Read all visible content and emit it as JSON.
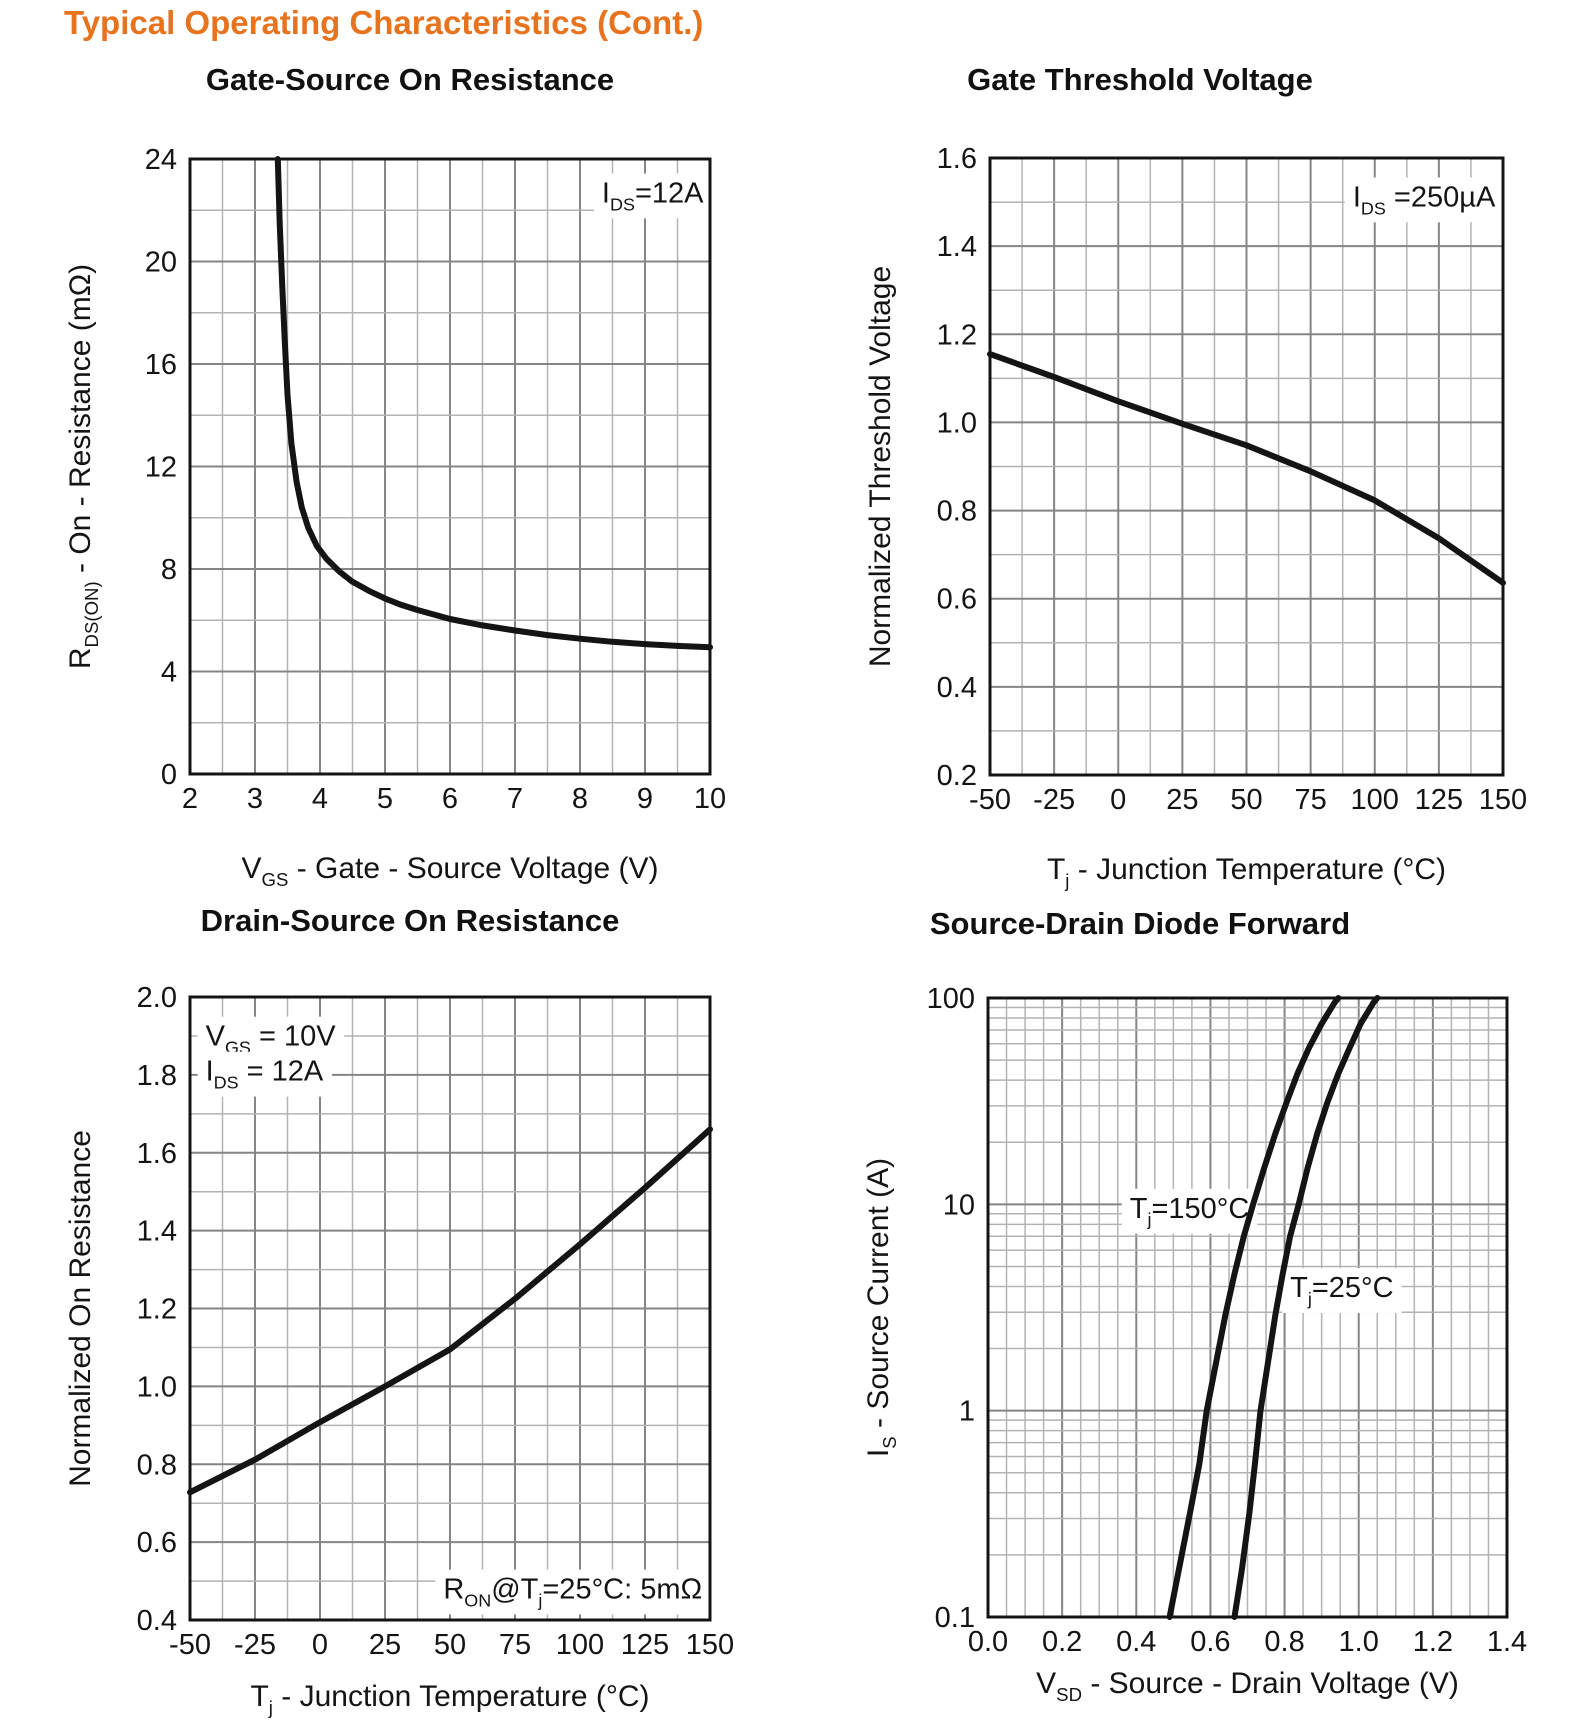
{
  "page": {
    "title": "Typical Operating Characteristics (Cont.)",
    "title_color": "#E8731E"
  },
  "chart_data": [
    {
      "type": "line",
      "title": "Gate-Source On Resistance",
      "xlabel_segments": [
        [
          "V",
          0
        ],
        [
          "GS",
          1
        ],
        [
          " - Gate - Source Voltage (V)",
          0
        ]
      ],
      "ylabel_segments": [
        [
          "R",
          0
        ],
        [
          "DS(ON)",
          1
        ],
        [
          " - On - Resistance (mΩ)",
          0
        ]
      ],
      "x": {
        "scale": "linear",
        "min": 2,
        "max": 10,
        "minor": 0.5,
        "tick_values": [
          2,
          3,
          4,
          5,
          6,
          7,
          8,
          9,
          10
        ],
        "tick_labels": [
          "2",
          "3",
          "4",
          "5",
          "6",
          "7",
          "8",
          "9",
          "10"
        ]
      },
      "y": {
        "scale": "linear",
        "min": 0,
        "max": 24,
        "grid": 2,
        "tick_values": [
          0,
          4,
          8,
          12,
          16,
          20,
          24
        ],
        "tick_labels": [
          "0",
          "4",
          "8",
          "12",
          "16",
          "20",
          "24"
        ]
      },
      "annotations": [
        {
          "segments": [
            [
              "I",
              0
            ],
            [
              "DS",
              1
            ],
            [
              "=12A",
              0
            ]
          ],
          "x": 9.9,
          "y": 22.3,
          "anchor": "end",
          "bg": true
        }
      ],
      "series": [
        {
          "name": "IDS=12A",
          "points": [
            [
              3.35,
              24
            ],
            [
              3.38,
              21.5
            ],
            [
              3.42,
              19
            ],
            [
              3.46,
              16.8
            ],
            [
              3.5,
              14.8
            ],
            [
              3.56,
              12.9
            ],
            [
              3.64,
              11.4
            ],
            [
              3.72,
              10.4
            ],
            [
              3.82,
              9.6
            ],
            [
              3.95,
              8.9
            ],
            [
              4.1,
              8.4
            ],
            [
              4.3,
              7.9
            ],
            [
              4.5,
              7.5
            ],
            [
              4.75,
              7.15
            ],
            [
              5,
              6.85
            ],
            [
              5.25,
              6.6
            ],
            [
              5.5,
              6.4
            ],
            [
              6,
              6.05
            ],
            [
              6.5,
              5.8
            ],
            [
              7,
              5.6
            ],
            [
              7.5,
              5.42
            ],
            [
              8,
              5.28
            ],
            [
              8.5,
              5.16
            ],
            [
              9,
              5.07
            ],
            [
              9.5,
              5.0
            ],
            [
              10,
              4.95
            ]
          ]
        }
      ]
    },
    {
      "type": "line",
      "title": "Gate Threshold Voltage",
      "xlabel_segments": [
        [
          "T",
          0
        ],
        [
          "j",
          1
        ],
        [
          " - Junction Temperature (°C)",
          0
        ]
      ],
      "ylabel_segments": [
        [
          "Normalized Threshold Voltage",
          0
        ]
      ],
      "x": {
        "scale": "linear",
        "min": -50,
        "max": 150,
        "minor": 12.5,
        "tick_values": [
          -50,
          -25,
          0,
          25,
          50,
          75,
          100,
          125,
          150
        ],
        "tick_labels": [
          "-50",
          "-25",
          "0",
          "25",
          "50",
          "75",
          "100",
          "125",
          "150"
        ]
      },
      "y": {
        "scale": "linear",
        "min": 0.2,
        "max": 1.6,
        "grid": 0.1,
        "tick_values": [
          0.2,
          0.4,
          0.6,
          0.8,
          1.0,
          1.2,
          1.4,
          1.6
        ],
        "tick_labels": [
          "0.2",
          "0.4",
          "0.6",
          "0.8",
          "1.0",
          "1.2",
          "1.4",
          "1.6"
        ]
      },
      "annotations": [
        {
          "segments": [
            [
              "I",
              0
            ],
            [
              "DS",
              1
            ],
            [
              " =250µA",
              0
            ]
          ],
          "x": 147,
          "y": 1.49,
          "anchor": "end",
          "bg": true
        }
      ],
      "series": [
        {
          "name": "IDS=250µA",
          "points": [
            [
              -50,
              1.155
            ],
            [
              -25,
              1.103
            ],
            [
              0,
              1.048
            ],
            [
              25,
              0.997
            ],
            [
              50,
              0.948
            ],
            [
              75,
              0.889
            ],
            [
              100,
              0.823
            ],
            [
              125,
              0.737
            ],
            [
              150,
              0.636
            ]
          ]
        }
      ]
    },
    {
      "type": "line",
      "title": "Drain-Source On Resistance",
      "xlabel_segments": [
        [
          "T",
          0
        ],
        [
          "j",
          1
        ],
        [
          " - Junction Temperature (°C)",
          0
        ]
      ],
      "ylabel_segments": [
        [
          "Normalized On Resistance",
          0
        ]
      ],
      "x": {
        "scale": "linear",
        "min": -50,
        "max": 150,
        "minor": 12.5,
        "tick_values": [
          -50,
          -25,
          0,
          25,
          50,
          75,
          100,
          125,
          150
        ],
        "tick_labels": [
          "-50",
          "-25",
          "0",
          "25",
          "50",
          "75",
          "100",
          "125",
          "150"
        ]
      },
      "y": {
        "scale": "linear",
        "min": 0.4,
        "max": 2.0,
        "grid": 0.1,
        "tick_values": [
          0.4,
          0.6,
          0.8,
          1.0,
          1.2,
          1.4,
          1.6,
          1.8,
          2.0
        ],
        "tick_labels": [
          "0.4",
          "0.6",
          "0.8",
          "1.0",
          "1.2",
          "1.4",
          "1.6",
          "1.8",
          "2.0"
        ]
      },
      "annotations": [
        {
          "segments": [
            [
              "V",
              0
            ],
            [
              "GS",
              1
            ],
            [
              " = 10V",
              0
            ]
          ],
          "x": -44,
          "y": 1.875,
          "anchor": "start",
          "bg": true
        },
        {
          "segments": [
            [
              "I",
              0
            ],
            [
              "DS",
              1
            ],
            [
              " = 12A",
              0
            ]
          ],
          "x": -44,
          "y": 1.785,
          "anchor": "start",
          "bg": true
        },
        {
          "segments": [
            [
              "R",
              0
            ],
            [
              "ON",
              1
            ],
            [
              "@T",
              0
            ],
            [
              "j",
              1
            ],
            [
              "=25°C: 5mΩ",
              0
            ]
          ],
          "x": 147,
          "y": 0.455,
          "anchor": "end",
          "bg": true
        }
      ],
      "series": [
        {
          "name": "VGS=10V, IDS=12A",
          "points": [
            [
              -50,
              0.728
            ],
            [
              -25,
              0.812
            ],
            [
              0,
              0.908
            ],
            [
              25,
              1.0
            ],
            [
              50,
              1.095
            ],
            [
              75,
              1.225
            ],
            [
              100,
              1.365
            ],
            [
              125,
              1.51
            ],
            [
              150,
              1.66
            ]
          ]
        }
      ]
    },
    {
      "type": "line",
      "title": "Source-Drain Diode Forward",
      "xlabel_segments": [
        [
          "V",
          0
        ],
        [
          "SD",
          1
        ],
        [
          " - Source - Drain Voltage (V)",
          0
        ]
      ],
      "ylabel_segments": [
        [
          "I",
          0
        ],
        [
          "S",
          1
        ],
        [
          " - Source Current (A)",
          0
        ]
      ],
      "x": {
        "scale": "linear",
        "min": 0,
        "max": 1.4,
        "minor": 0.05,
        "tick_values": [
          0,
          0.2,
          0.4,
          0.6,
          0.8,
          1.0,
          1.2,
          1.4
        ],
        "tick_labels": [
          "0.0",
          "0.2",
          "0.4",
          "0.6",
          "0.8",
          "1.0",
          "1.2",
          "1.4"
        ]
      },
      "y": {
        "scale": "log",
        "min": 0.1,
        "max": 100,
        "tick_values": [
          0.1,
          1,
          10,
          100
        ],
        "tick_labels": [
          "0.1",
          "1",
          "10",
          "100"
        ]
      },
      "annotations": [
        {
          "segments": [
            [
              "T",
              0
            ],
            [
              "j",
              1
            ],
            [
              "=150°C",
              0
            ]
          ],
          "x": 0.705,
          "y": 8.6,
          "anchor": "end",
          "bg": true
        },
        {
          "segments": [
            [
              "T",
              0
            ],
            [
              "j",
              1
            ],
            [
              "=25°C",
              0
            ]
          ],
          "x": 0.815,
          "y": 3.55,
          "anchor": "start",
          "bg": true
        }
      ],
      "series": [
        {
          "name": "Tj=150°C",
          "points": [
            [
              0.49,
              0.1
            ],
            [
              0.515,
              0.17
            ],
            [
              0.545,
              0.32
            ],
            [
              0.57,
              0.55
            ],
            [
              0.59,
              1.0
            ],
            [
              0.615,
              1.7
            ],
            [
              0.64,
              2.9
            ],
            [
              0.665,
              4.6
            ],
            [
              0.69,
              7.0
            ],
            [
              0.715,
              10
            ],
            [
              0.745,
              15
            ],
            [
              0.775,
              22
            ],
            [
              0.805,
              31
            ],
            [
              0.835,
              43
            ],
            [
              0.865,
              57
            ],
            [
              0.9,
              75
            ],
            [
              0.935,
              95
            ],
            [
              0.945,
              100
            ]
          ]
        },
        {
          "name": "Tj=25°C",
          "points": [
            [
              0.665,
              0.1
            ],
            [
              0.685,
              0.17
            ],
            [
              0.705,
              0.32
            ],
            [
              0.72,
              0.55
            ],
            [
              0.735,
              1.0
            ],
            [
              0.755,
              1.7
            ],
            [
              0.775,
              2.9
            ],
            [
              0.795,
              4.6
            ],
            [
              0.815,
              7.0
            ],
            [
              0.838,
              10
            ],
            [
              0.862,
              15
            ],
            [
              0.888,
              22
            ],
            [
              0.915,
              31
            ],
            [
              0.945,
              43
            ],
            [
              0.975,
              57
            ],
            [
              1.005,
              75
            ],
            [
              1.04,
              95
            ],
            [
              1.05,
              100
            ]
          ]
        }
      ]
    }
  ]
}
